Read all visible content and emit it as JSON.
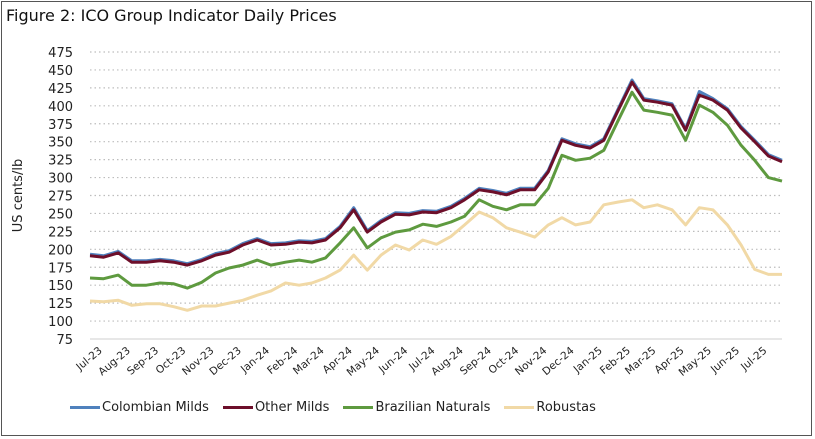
{
  "chart_data": {
    "type": "line",
    "title": "Figure 2: ICO Group Indicator Daily Prices",
    "xlabel": "",
    "ylabel": "US cents/lb",
    "ylim": [
      75,
      475
    ],
    "yticks": [
      75,
      100,
      125,
      150,
      175,
      200,
      225,
      250,
      275,
      300,
      325,
      350,
      375,
      400,
      425,
      450,
      475
    ],
    "xticks": [
      "Jul-23",
      "Aug-23",
      "Sep-23",
      "Oct-23",
      "Nov-23",
      "Dec-23",
      "Jan-24",
      "Feb-24",
      "Mar-24",
      "Apr-24",
      "May-24",
      "Jun-24",
      "Jul-24",
      "Aug-24",
      "Sep-24",
      "Oct-24",
      "Nov-24",
      "Dec-24",
      "Jan-25",
      "Feb-25",
      "Mar-25",
      "Apr-25",
      "May-25",
      "Jun-25",
      "Jul-25"
    ],
    "xrange": [
      "2023-07-01",
      "2025-07-31"
    ],
    "grid": "horizontal dotted",
    "legend_position": "bottom",
    "x": [
      "2023-07-01",
      "2023-07-16",
      "2023-08-01",
      "2023-08-16",
      "2023-09-01",
      "2023-09-16",
      "2023-10-01",
      "2023-10-16",
      "2023-11-01",
      "2023-11-16",
      "2023-12-01",
      "2023-12-16",
      "2024-01-01",
      "2024-01-16",
      "2024-02-01",
      "2024-02-16",
      "2024-03-01",
      "2024-03-16",
      "2024-04-01",
      "2024-04-16",
      "2024-05-01",
      "2024-05-16",
      "2024-06-01",
      "2024-06-16",
      "2024-07-01",
      "2024-07-16",
      "2024-08-01",
      "2024-08-16",
      "2024-09-01",
      "2024-09-16",
      "2024-10-01",
      "2024-10-16",
      "2024-11-01",
      "2024-11-16",
      "2024-12-01",
      "2024-12-16",
      "2025-01-01",
      "2025-01-16",
      "2025-02-01",
      "2025-02-16",
      "2025-03-01",
      "2025-03-16",
      "2025-04-01",
      "2025-04-16",
      "2025-05-01",
      "2025-05-16",
      "2025-06-01",
      "2025-06-16",
      "2025-07-01",
      "2025-07-16",
      "2025-07-31"
    ],
    "series": [
      {
        "name": "Colombian Milds",
        "color": "#4f81bd",
        "values": [
          193,
          191,
          197,
          184,
          184,
          186,
          184,
          180,
          186,
          194,
          198,
          208,
          215,
          208,
          209,
          212,
          211,
          215,
          232,
          258,
          226,
          240,
          251,
          250,
          254,
          253,
          260,
          271,
          285,
          282,
          278,
          285,
          285,
          310,
          354,
          347,
          343,
          354,
          396,
          436,
          410,
          407,
          403,
          368,
          420,
          410,
          396,
          371,
          352,
          332,
          324
        ]
      },
      {
        "name": "Other Milds",
        "color": "#6d0f2a",
        "values": [
          191,
          189,
          195,
          182,
          182,
          184,
          182,
          178,
          184,
          192,
          196,
          206,
          213,
          206,
          207,
          210,
          209,
          213,
          230,
          255,
          224,
          238,
          249,
          248,
          252,
          251,
          258,
          269,
          283,
          280,
          276,
          283,
          283,
          308,
          352,
          345,
          341,
          352,
          394,
          433,
          408,
          405,
          401,
          366,
          415,
          408,
          394,
          369,
          350,
          330,
          322
        ]
      },
      {
        "name": "Brazilian Naturals",
        "color": "#5e9a3f",
        "values": [
          160,
          159,
          164,
          150,
          150,
          153,
          152,
          146,
          154,
          167,
          174,
          178,
          185,
          178,
          182,
          185,
          182,
          188,
          209,
          230,
          202,
          216,
          224,
          227,
          235,
          232,
          238,
          246,
          269,
          260,
          255,
          262,
          262,
          285,
          331,
          324,
          327,
          338,
          380,
          419,
          394,
          391,
          387,
          352,
          401,
          391,
          373,
          345,
          324,
          300,
          295
        ]
      },
      {
        "name": "Robustas",
        "color": "#f1d9a6",
        "values": [
          128,
          127,
          129,
          122,
          124,
          124,
          120,
          115,
          121,
          121,
          125,
          129,
          136,
          142,
          153,
          150,
          153,
          160,
          171,
          192,
          171,
          192,
          206,
          199,
          213,
          207,
          218,
          234,
          252,
          244,
          230,
          224,
          217,
          234,
          244,
          234,
          238,
          262,
          266,
          269,
          258,
          262,
          255,
          234,
          258,
          255,
          234,
          206,
          172,
          165,
          165
        ]
      }
    ]
  }
}
